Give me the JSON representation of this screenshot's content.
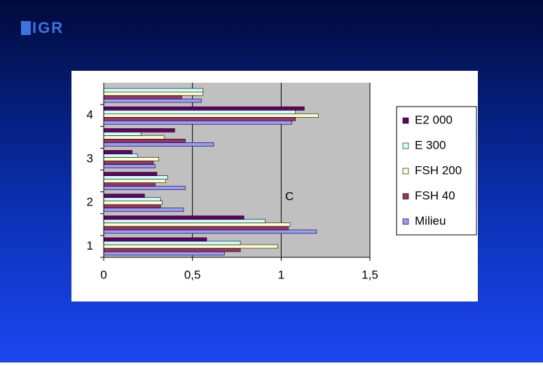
{
  "logo": "IGR",
  "chart_data": {
    "type": "bar",
    "orientation": "horizontal",
    "annotation": "C",
    "categories": [
      "1",
      null,
      "2",
      null,
      "3",
      null,
      "4",
      null
    ],
    "series": [
      {
        "name": "Milieu",
        "color": "#9999ff",
        "values": [
          0.68,
          1.2,
          0.45,
          0.46,
          0.29,
          0.62,
          1.06,
          0.55
        ]
      },
      {
        "name": "FSH 40",
        "color": "#993366",
        "values": [
          0.77,
          1.04,
          0.32,
          0.29,
          0.28,
          0.46,
          1.08,
          0.44
        ]
      },
      {
        "name": "FSH 200",
        "color": "#ffffcc",
        "values": [
          0.98,
          1.05,
          0.33,
          0.35,
          0.31,
          0.34,
          1.21,
          0.56
        ]
      },
      {
        "name": "E 300",
        "color": "#ccffff",
        "values": [
          0.77,
          0.91,
          0.32,
          0.36,
          0.19,
          0.21,
          1.08,
          0.56
        ]
      },
      {
        "name": "E2 000",
        "color": "#660066",
        "values": [
          0.58,
          0.79,
          0.23,
          0.3,
          0.16,
          0.4,
          1.13,
          0
        ]
      }
    ],
    "xlim": [
      0,
      1.5
    ],
    "xticks": [
      0,
      {
        "value": 0.5,
        "label": "0,5"
      },
      1,
      {
        "value": 1.5,
        "label": "1,5"
      }
    ],
    "grid": true,
    "legend": "right"
  }
}
